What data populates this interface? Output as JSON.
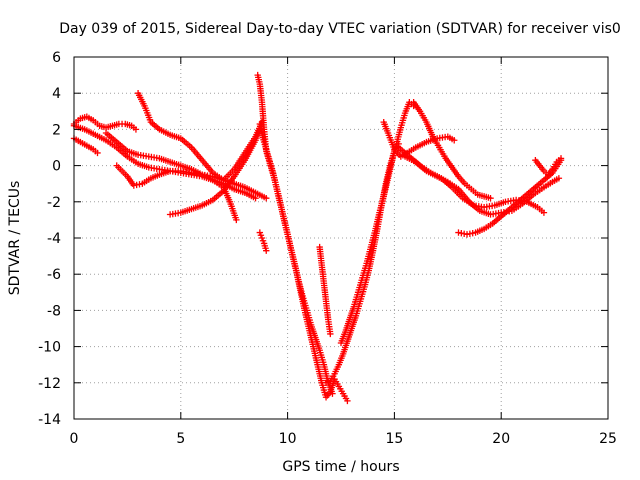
{
  "chart_data": {
    "type": "scatter",
    "title": "Day 039 of 2015, Sidereal Day-to-day VTEC variation (SDTVAR) for receiver vis0",
    "xlabel": "GPS time / hours",
    "ylabel": "SDTVAR / TECUs",
    "xlim": [
      0,
      25
    ],
    "ylim": [
      -14,
      6
    ],
    "xticks": [
      "0",
      "5",
      "10",
      "15",
      "20",
      "25"
    ],
    "yticks": [
      "-14",
      "-12",
      "-10",
      "-8",
      "-6",
      "-4",
      "-2",
      "0",
      "2",
      "4",
      "6"
    ],
    "grid": true,
    "marker": "plus",
    "color": "#ff0000",
    "series": [
      {
        "x": [
          0.0,
          0.3,
          0.6,
          0.9,
          1.2,
          1.5,
          1.8,
          2.1,
          2.4,
          2.7,
          2.9
        ],
        "y": [
          2.3,
          2.6,
          2.7,
          2.5,
          2.2,
          2.1,
          2.2,
          2.3,
          2.3,
          2.2,
          2.0
        ]
      },
      {
        "x": [
          0.0,
          0.3,
          0.6,
          0.9,
          1.1
        ],
        "y": [
          1.5,
          1.3,
          1.1,
          0.9,
          0.7
        ]
      },
      {
        "x": [
          0.0,
          0.5,
          1.0,
          1.5,
          2.0,
          2.5,
          3.0,
          3.5,
          4.0,
          4.5,
          5.0,
          5.5,
          6.0,
          6.5,
          7.0,
          7.3,
          7.6
        ],
        "y": [
          2.2,
          2.0,
          1.7,
          1.4,
          1.0,
          0.5,
          0.1,
          -0.1,
          -0.2,
          -0.3,
          -0.4,
          -0.5,
          -0.6,
          -0.8,
          -1.2,
          -2.0,
          -3.0
        ]
      },
      {
        "x": [
          1.5,
          2.0,
          2.5,
          3.0,
          3.5,
          4.0,
          4.5,
          5.0,
          5.5,
          6.0,
          6.5,
          7.0,
          7.5,
          8.0,
          8.5
        ],
        "y": [
          1.8,
          1.3,
          0.8,
          0.6,
          0.5,
          0.4,
          0.2,
          0.0,
          -0.2,
          -0.5,
          -0.8,
          -1.0,
          -1.3,
          -1.5,
          -1.8
        ]
      },
      {
        "x": [
          2.0,
          2.5,
          2.8,
          3.2,
          3.6,
          4.0,
          4.5,
          5.0,
          5.5,
          6.0,
          6.5,
          7.0,
          7.5,
          8.0,
          8.5,
          9.0
        ],
        "y": [
          0.0,
          -0.6,
          -1.1,
          -1.0,
          -0.7,
          -0.5,
          -0.3,
          -0.3,
          -0.4,
          -0.5,
          -0.6,
          -0.8,
          -1.0,
          -1.2,
          -1.5,
          -1.8
        ]
      },
      {
        "x": [
          3.0,
          3.3,
          3.6,
          4.0,
          4.5,
          5.0,
          5.5,
          6.0,
          6.5,
          7.0,
          7.5,
          8.0,
          8.5,
          8.8
        ],
        "y": [
          4.0,
          3.3,
          2.4,
          2.0,
          1.7,
          1.5,
          1.0,
          0.3,
          -0.4,
          -0.8,
          -0.2,
          0.7,
          1.6,
          2.4
        ]
      },
      {
        "x": [
          4.5,
          5.0,
          5.5,
          6.0,
          6.5,
          7.0,
          7.5,
          8.0,
          8.5,
          8.7
        ],
        "y": [
          -2.7,
          -2.6,
          -2.4,
          -2.2,
          -1.9,
          -1.4,
          -0.6,
          0.3,
          1.4,
          2.0
        ]
      },
      {
        "x": [
          8.6,
          8.7,
          8.8,
          8.9,
          9.0,
          9.2,
          9.4,
          9.6,
          9.8,
          10.0,
          10.2,
          10.4,
          10.6,
          10.8,
          11.0,
          11.2,
          11.4,
          11.6,
          11.8,
          12.0,
          12.2,
          12.4,
          12.6,
          12.8
        ],
        "y": [
          5.0,
          4.5,
          3.5,
          2.0,
          0.8,
          0.0,
          -0.8,
          -1.8,
          -2.8,
          -3.8,
          -4.8,
          -5.8,
          -6.9,
          -8.0,
          -9.0,
          -10.0,
          -11.0,
          -12.0,
          -12.8,
          -12.5,
          -11.8,
          -12.2,
          -12.6,
          -13.0
        ]
      },
      {
        "x": [
          8.7,
          8.9,
          9.1,
          9.3,
          9.5,
          9.7,
          9.9,
          10.1,
          10.3,
          10.5,
          10.7,
          10.9,
          11.1,
          11.3,
          11.5,
          11.7,
          11.9,
          12.1
        ],
        "y": [
          2.3,
          1.3,
          0.5,
          -0.3,
          -1.3,
          -2.3,
          -3.3,
          -4.3,
          -5.3,
          -6.3,
          -7.2,
          -8.0,
          -8.8,
          -9.5,
          -10.2,
          -11.0,
          -12.0,
          -12.6
        ]
      },
      {
        "x": [
          8.7,
          8.8,
          8.9,
          9.0
        ],
        "y": [
          -3.7,
          -4.0,
          -4.3,
          -4.7
        ]
      },
      {
        "x": [
          11.5,
          11.6,
          11.7,
          11.8,
          11.9,
          12.0
        ],
        "y": [
          -4.5,
          -5.5,
          -6.5,
          -7.5,
          -8.5,
          -9.3
        ]
      },
      {
        "x": [
          11.8,
          12.0,
          12.2,
          12.4,
          12.6,
          12.8,
          13.0,
          13.2,
          13.4,
          13.6,
          13.8,
          14.0,
          14.2,
          14.4,
          14.6,
          14.8,
          15.0,
          15.2
        ],
        "y": [
          -12.0,
          -11.9,
          -11.5,
          -11.0,
          -10.4,
          -9.7,
          -9.0,
          -8.3,
          -7.5,
          -6.7,
          -5.8,
          -4.7,
          -3.5,
          -2.2,
          -1.0,
          0.0,
          0.8,
          1.2
        ]
      },
      {
        "x": [
          12.5,
          12.7,
          12.9,
          13.1,
          13.3,
          13.5,
          13.7,
          13.9,
          14.1,
          14.3,
          14.5,
          14.7,
          14.9,
          15.1,
          15.3,
          15.5,
          15.7,
          15.9
        ],
        "y": [
          -9.8,
          -9.2,
          -8.5,
          -7.8,
          -7.0,
          -6.2,
          -5.4,
          -4.5,
          -3.6,
          -2.6,
          -1.7,
          -0.7,
          0.3,
          1.2,
          2.1,
          2.9,
          3.5,
          3.3
        ]
      },
      {
        "x": [
          14.5,
          14.7,
          15.0,
          15.3,
          15.6,
          16.0,
          16.5,
          17.0,
          17.5,
          17.8
        ],
        "y": [
          2.4,
          1.8,
          0.9,
          0.5,
          0.7,
          1.0,
          1.3,
          1.5,
          1.6,
          1.4
        ]
      },
      {
        "x": [
          15.9,
          16.2,
          16.5,
          16.8,
          17.1,
          17.4,
          17.7,
          18.0,
          18.3,
          18.6,
          18.9,
          19.2,
          19.5
        ],
        "y": [
          3.5,
          3.0,
          2.4,
          1.6,
          1.0,
          0.4,
          -0.1,
          -0.6,
          -1.0,
          -1.3,
          -1.6,
          -1.7,
          -1.8
        ]
      },
      {
        "x": [
          15.5,
          16.0,
          16.5,
          17.0,
          17.5,
          18.0,
          18.5,
          19.0,
          19.5,
          20.0,
          20.5,
          21.0,
          21.5,
          22.0,
          22.4,
          22.7
        ],
        "y": [
          0.5,
          0.2,
          -0.3,
          -0.6,
          -0.9,
          -1.3,
          -2.0,
          -2.5,
          -2.7,
          -2.6,
          -2.5,
          -2.1,
          -1.6,
          -1.2,
          -0.9,
          -0.7
        ]
      },
      {
        "x": [
          15.2,
          15.7,
          16.2,
          16.7,
          17.2,
          17.7,
          18.2,
          18.7,
          19.2,
          19.7,
          20.2,
          20.7,
          21.2,
          21.7,
          22.0
        ],
        "y": [
          1.0,
          0.5,
          0.0,
          -0.4,
          -0.7,
          -1.2,
          -1.8,
          -2.2,
          -2.3,
          -2.2,
          -2.0,
          -1.9,
          -2.0,
          -2.3,
          -2.6
        ]
      },
      {
        "x": [
          18.0,
          18.4,
          18.8,
          19.2,
          19.6,
          20.0,
          20.4,
          20.8,
          21.2,
          21.6,
          22.0,
          22.4,
          22.8
        ],
        "y": [
          -3.7,
          -3.8,
          -3.7,
          -3.5,
          -3.2,
          -2.8,
          -2.4,
          -2.0,
          -1.6,
          -1.2,
          -0.8,
          -0.4,
          0.3
        ]
      },
      {
        "x": [
          21.6,
          21.8,
          22.0,
          22.2,
          22.4,
          22.6,
          22.8
        ],
        "y": [
          0.3,
          0.0,
          -0.3,
          -0.5,
          -0.2,
          0.2,
          0.4
        ]
      }
    ]
  }
}
